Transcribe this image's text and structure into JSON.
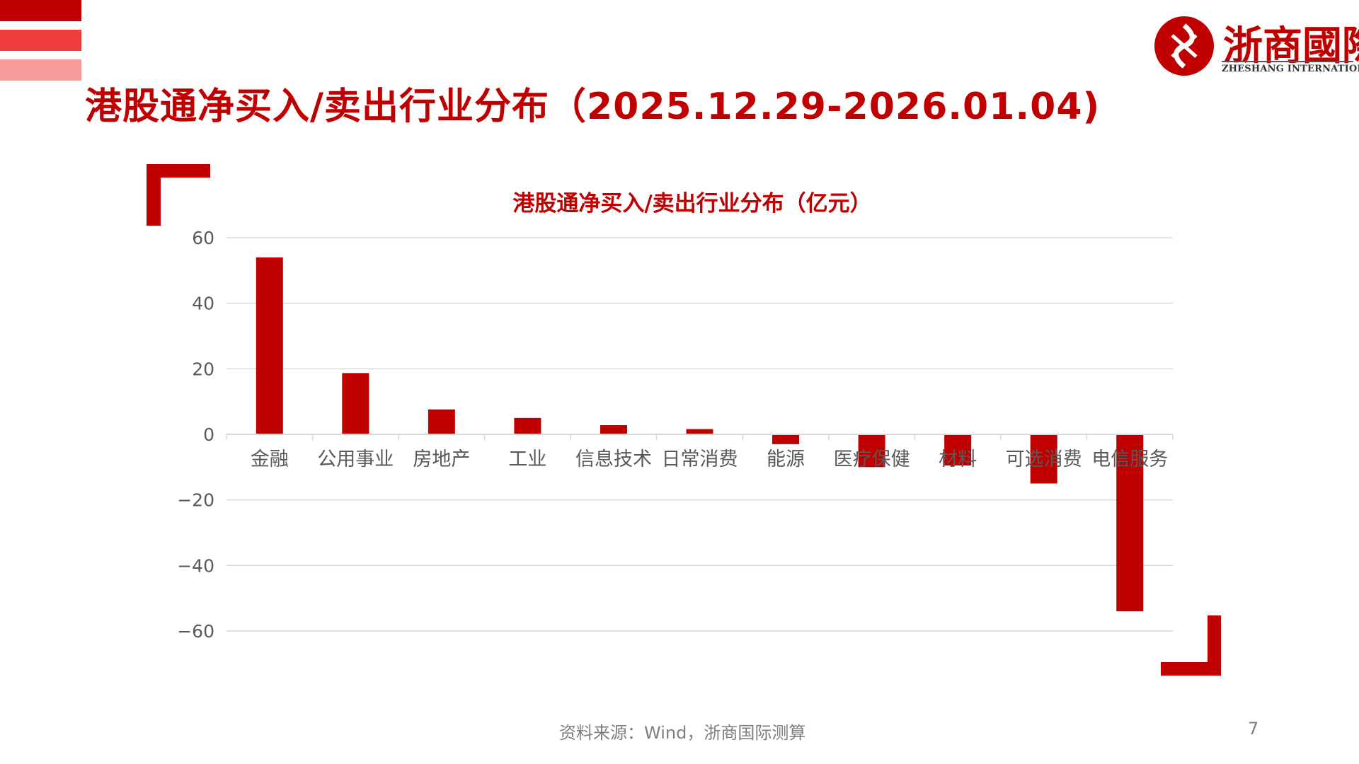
{
  "page": {
    "title": "港股通净买入/卖出行业分布（2025.12.29-2026.01.04)",
    "source": "资料来源：Wind，浙商国际测算",
    "page_number": "7"
  },
  "logo": {
    "name": "浙商國際",
    "english": "ZHESHANG INTERNATIONAL"
  },
  "colors": {
    "brand_red": "#c00000",
    "bar": "#c00000",
    "grid": "#d9d9d9",
    "axis_text": "#595959"
  },
  "chart_data": {
    "type": "bar",
    "title": "港股通净买入/卖出行业分布（亿元）",
    "xlabel": "",
    "ylabel": "",
    "categories": [
      "金融",
      "公用事业",
      "房地产",
      "工业",
      "信息技术",
      "日常消费",
      "能源",
      "医疗保健",
      "材料",
      "可选消费",
      "电信服务"
    ],
    "values": [
      54,
      18.7,
      7.6,
      5,
      2.8,
      1.6,
      -3,
      -10,
      -9.5,
      -15,
      -54
    ],
    "ylim": [
      -60,
      60
    ],
    "yticks": [
      60,
      40,
      20,
      0,
      -20,
      -40,
      -60
    ],
    "ytick_labels": [
      "60",
      "40",
      "20",
      "0",
      "−20",
      "−40",
      "−60"
    ],
    "grid": true,
    "legend": "none"
  }
}
